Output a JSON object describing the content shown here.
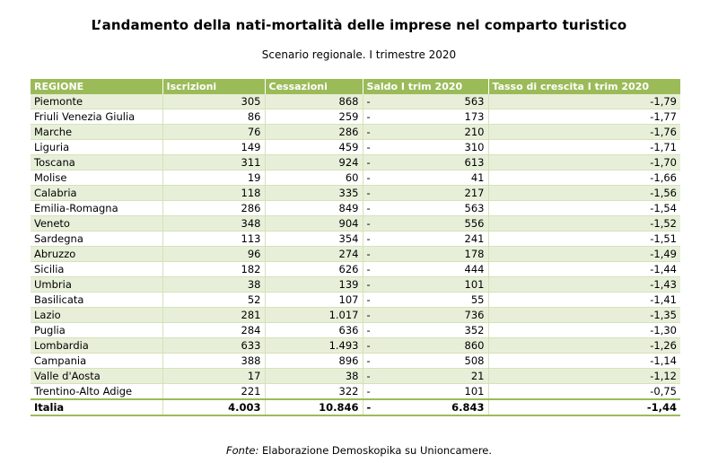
{
  "title": "L’andamento della nati-mortalità delle imprese nel comparto turistico",
  "subtitle": "Scenario regionale. I trimestre 2020",
  "columns": [
    "REGIONE",
    "Iscrizioni",
    "Cessazioni",
    "Saldo I trim 2020",
    "Tasso di crescita I trim 2020"
  ],
  "rows": [
    {
      "regione": "Piemonte",
      "iscrizioni": "305",
      "cessazioni": "868",
      "segno": "-",
      "saldo": "563",
      "tasso": "-1,79"
    },
    {
      "regione": "Friuli Venezia Giulia",
      "iscrizioni": "86",
      "cessazioni": "259",
      "segno": "-",
      "saldo": "173",
      "tasso": "-1,77"
    },
    {
      "regione": "Marche",
      "iscrizioni": "76",
      "cessazioni": "286",
      "segno": "-",
      "saldo": "210",
      "tasso": "-1,76"
    },
    {
      "regione": "Liguria",
      "iscrizioni": "149",
      "cessazioni": "459",
      "segno": "-",
      "saldo": "310",
      "tasso": "-1,71"
    },
    {
      "regione": "Toscana",
      "iscrizioni": "311",
      "cessazioni": "924",
      "segno": "-",
      "saldo": "613",
      "tasso": "-1,70"
    },
    {
      "regione": "Molise",
      "iscrizioni": "19",
      "cessazioni": "60",
      "segno": "-",
      "saldo": "41",
      "tasso": "-1,66"
    },
    {
      "regione": "Calabria",
      "iscrizioni": "118",
      "cessazioni": "335",
      "segno": "-",
      "saldo": "217",
      "tasso": "-1,56"
    },
    {
      "regione": "Emilia-Romagna",
      "iscrizioni": "286",
      "cessazioni": "849",
      "segno": "-",
      "saldo": "563",
      "tasso": "-1,54"
    },
    {
      "regione": "Veneto",
      "iscrizioni": "348",
      "cessazioni": "904",
      "segno": "-",
      "saldo": "556",
      "tasso": "-1,52"
    },
    {
      "regione": "Sardegna",
      "iscrizioni": "113",
      "cessazioni": "354",
      "segno": "-",
      "saldo": "241",
      "tasso": "-1,51"
    },
    {
      "regione": "Abruzzo",
      "iscrizioni": "96",
      "cessazioni": "274",
      "segno": "-",
      "saldo": "178",
      "tasso": "-1,49"
    },
    {
      "regione": "Sicilia",
      "iscrizioni": "182",
      "cessazioni": "626",
      "segno": "-",
      "saldo": "444",
      "tasso": "-1,44"
    },
    {
      "regione": "Umbria",
      "iscrizioni": "38",
      "cessazioni": "139",
      "segno": "-",
      "saldo": "101",
      "tasso": "-1,43"
    },
    {
      "regione": "Basilicata",
      "iscrizioni": "52",
      "cessazioni": "107",
      "segno": "-",
      "saldo": "55",
      "tasso": "-1,41"
    },
    {
      "regione": "Lazio",
      "iscrizioni": "281",
      "cessazioni": "1.017",
      "segno": "-",
      "saldo": "736",
      "tasso": "-1,35"
    },
    {
      "regione": "Puglia",
      "iscrizioni": "284",
      "cessazioni": "636",
      "segno": "-",
      "saldo": "352",
      "tasso": "-1,30"
    },
    {
      "regione": "Lombardia",
      "iscrizioni": "633",
      "cessazioni": "1.493",
      "segno": "-",
      "saldo": "860",
      "tasso": "-1,26"
    },
    {
      "regione": "Campania",
      "iscrizioni": "388",
      "cessazioni": "896",
      "segno": "-",
      "saldo": "508",
      "tasso": "-1,14"
    },
    {
      "regione": "Valle d'Aosta",
      "iscrizioni": "17",
      "cessazioni": "38",
      "segno": "-",
      "saldo": "21",
      "tasso": "-1,12"
    },
    {
      "regione": "Trentino-Alto Adige",
      "iscrizioni": "221",
      "cessazioni": "322",
      "segno": "-",
      "saldo": "101",
      "tasso": "-0,75"
    }
  ],
  "total": {
    "regione": "Italia",
    "iscrizioni": "4.003",
    "cessazioni": "10.846",
    "segno": "-",
    "saldo": "6.843",
    "tasso": "-1,44"
  },
  "source": {
    "label": "Fonte:",
    "text": " Elaborazione Demoskopika su Unioncamere."
  },
  "colors": {
    "header_bg": "#9bbb59",
    "band_bg": "#e8efd9"
  }
}
